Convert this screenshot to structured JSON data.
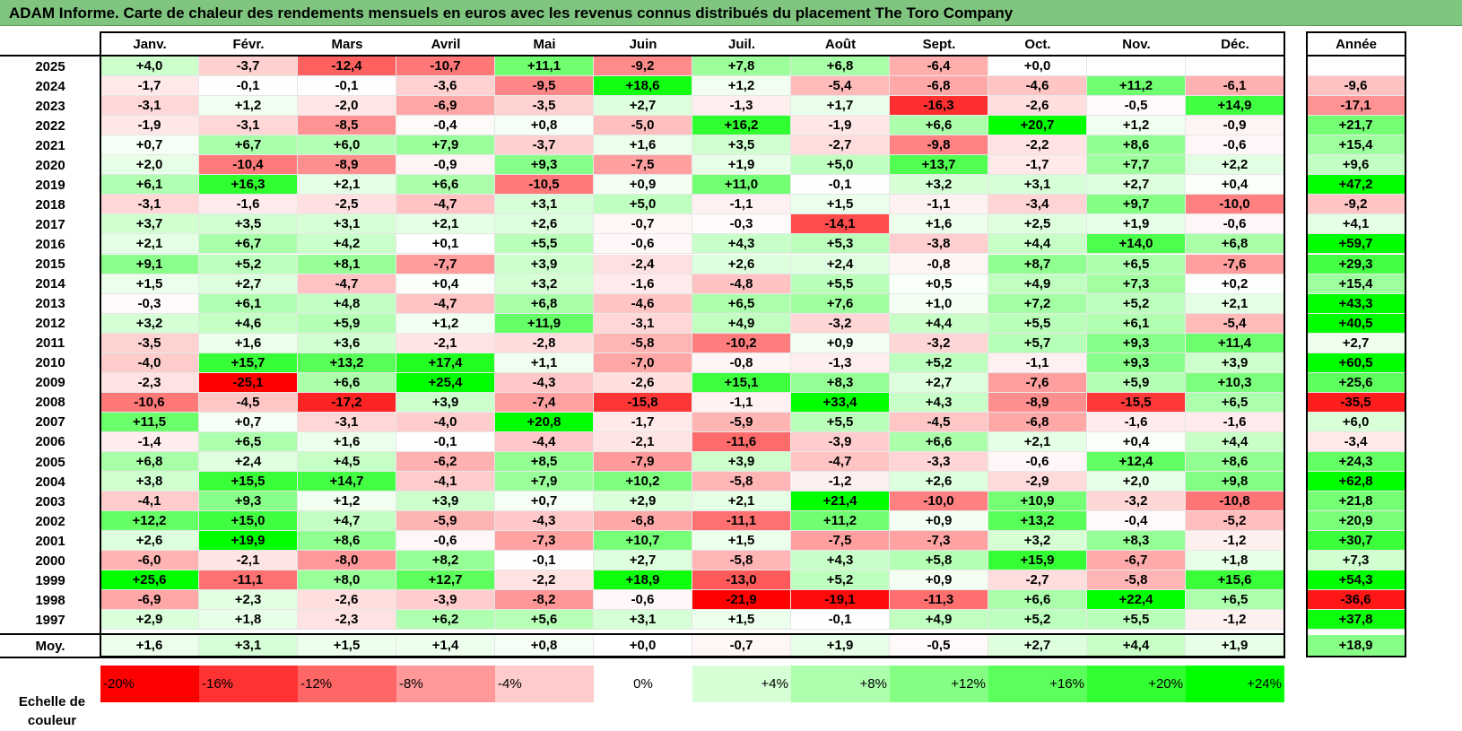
{
  "title": "ADAM Informe. Carte de chaleur des rendements mensuels en euros avec les revenus connus distribués du placement The Toro Company",
  "chart_data": {
    "type": "heatmap",
    "title": "ADAM Informe. Carte de chaleur des rendements mensuels en euros avec les revenus connus distribués du placement The Toro Company",
    "columns": [
      "Janv.",
      "Févr.",
      "Mars",
      "Avril",
      "Mai",
      "Juin",
      "Juil.",
      "Août",
      "Sept.",
      "Oct.",
      "Nov.",
      "Déc."
    ],
    "annual_header": "Année",
    "average_label": "Moy.",
    "rows": [
      {
        "year": "2025",
        "values": [
          "+4,0",
          "-3,7",
          "-12,4",
          "-10,7",
          "+11,1",
          "-9,2",
          "+7,8",
          "+6,8",
          "-6,4",
          "+0,0",
          "",
          ""
        ],
        "annual": ""
      },
      {
        "year": "2024",
        "values": [
          "-1,7",
          "-0,1",
          "-0,1",
          "-3,6",
          "-9,5",
          "+18,6",
          "+1,2",
          "-5,4",
          "-6,8",
          "-4,6",
          "+11,2",
          "-6,1"
        ],
        "annual": "-9,6"
      },
      {
        "year": "2023",
        "values": [
          "-3,1",
          "+1,2",
          "-2,0",
          "-6,9",
          "-3,5",
          "+2,7",
          "-1,3",
          "+1,7",
          "-16,3",
          "-2,6",
          "-0,5",
          "+14,9"
        ],
        "annual": "-17,1"
      },
      {
        "year": "2022",
        "values": [
          "-1,9",
          "-3,1",
          "-8,5",
          "-0,4",
          "+0,8",
          "-5,0",
          "+16,2",
          "-1,9",
          "+6,6",
          "+20,7",
          "+1,2",
          "-0,9"
        ],
        "annual": "+21,7"
      },
      {
        "year": "2021",
        "values": [
          "+0,7",
          "+6,7",
          "+6,0",
          "+7,9",
          "-3,7",
          "+1,6",
          "+3,5",
          "-2,7",
          "-9,8",
          "-2,2",
          "+8,6",
          "-0,6"
        ],
        "annual": "+15,4"
      },
      {
        "year": "2020",
        "values": [
          "+2,0",
          "-10,4",
          "-8,9",
          "-0,9",
          "+9,3",
          "-7,5",
          "+1,9",
          "+5,0",
          "+13,7",
          "-1,7",
          "+7,7",
          "+2,2"
        ],
        "annual": "+9,6"
      },
      {
        "year": "2019",
        "values": [
          "+6,1",
          "+16,3",
          "+2,1",
          "+6,6",
          "-10,5",
          "+0,9",
          "+11,0",
          "-0,1",
          "+3,2",
          "+3,1",
          "+2,7",
          "+0,4"
        ],
        "annual": "+47,2"
      },
      {
        "year": "2018",
        "values": [
          "-3,1",
          "-1,6",
          "-2,5",
          "-4,7",
          "+3,1",
          "+5,0",
          "-1,1",
          "+1,5",
          "-1,1",
          "-3,4",
          "+9,7",
          "-10,0"
        ],
        "annual": "-9,2"
      },
      {
        "year": "2017",
        "values": [
          "+3,7",
          "+3,5",
          "+3,1",
          "+2,1",
          "+2,6",
          "-0,7",
          "-0,3",
          "-14,1",
          "+1,6",
          "+2,5",
          "+1,9",
          "-0,6"
        ],
        "annual": "+4,1"
      },
      {
        "year": "2016",
        "values": [
          "+2,1",
          "+6,7",
          "+4,2",
          "+0,1",
          "+5,5",
          "-0,6",
          "+4,3",
          "+5,3",
          "-3,8",
          "+4,4",
          "+14,0",
          "+6,8"
        ],
        "annual": "+59,7"
      },
      {
        "year": "2015",
        "values": [
          "+9,1",
          "+5,2",
          "+8,1",
          "-7,7",
          "+3,9",
          "-2,4",
          "+2,6",
          "+2,4",
          "-0,8",
          "+8,7",
          "+6,5",
          "-7,6"
        ],
        "annual": "+29,3"
      },
      {
        "year": "2014",
        "values": [
          "+1,5",
          "+2,7",
          "-4,7",
          "+0,4",
          "+3,2",
          "-1,6",
          "-4,8",
          "+5,5",
          "+0,5",
          "+4,9",
          "+7,3",
          "+0,2"
        ],
        "annual": "+15,4"
      },
      {
        "year": "2013",
        "values": [
          "-0,3",
          "+6,1",
          "+4,8",
          "-4,7",
          "+6,8",
          "-4,6",
          "+6,5",
          "+7,6",
          "+1,0",
          "+7,2",
          "+5,2",
          "+2,1"
        ],
        "annual": "+43,3"
      },
      {
        "year": "2012",
        "values": [
          "+3,2",
          "+4,6",
          "+5,9",
          "+1,2",
          "+11,9",
          "-3,1",
          "+4,9",
          "-3,2",
          "+4,4",
          "+5,5",
          "+6,1",
          "-5,4"
        ],
        "annual": "+40,5"
      },
      {
        "year": "2011",
        "values": [
          "-3,5",
          "+1,6",
          "+3,6",
          "-2,1",
          "-2,8",
          "-5,8",
          "-10,2",
          "+0,9",
          "-3,2",
          "+5,7",
          "+9,3",
          "+11,4"
        ],
        "annual": "+2,7"
      },
      {
        "year": "2010",
        "values": [
          "-4,0",
          "+15,7",
          "+13,2",
          "+17,4",
          "+1,1",
          "-7,0",
          "-0,8",
          "-1,3",
          "+5,2",
          "-1,1",
          "+9,3",
          "+3,9"
        ],
        "annual": "+60,5"
      },
      {
        "year": "2009",
        "values": [
          "-2,3",
          "-25,1",
          "+6,6",
          "+25,4",
          "-4,3",
          "-2,6",
          "+15,1",
          "+8,3",
          "+2,7",
          "-7,6",
          "+5,9",
          "+10,3"
        ],
        "annual": "+25,6"
      },
      {
        "year": "2008",
        "values": [
          "-10,6",
          "-4,5",
          "-17,2",
          "+3,9",
          "-7,4",
          "-15,8",
          "-1,1",
          "+33,4",
          "+4,3",
          "-8,9",
          "-15,5",
          "+6,5"
        ],
        "annual": "-35,5"
      },
      {
        "year": "2007",
        "values": [
          "+11,5",
          "+0,7",
          "-3,1",
          "-4,0",
          "+20,8",
          "-1,7",
          "-5,9",
          "+5,5",
          "-4,5",
          "-6,8",
          "-1,6",
          "-1,6"
        ],
        "annual": "+6,0"
      },
      {
        "year": "2006",
        "values": [
          "-1,4",
          "+6,5",
          "+1,6",
          "-0,1",
          "-4,4",
          "-2,1",
          "-11,6",
          "-3,9",
          "+6,6",
          "+2,1",
          "+0,4",
          "+4,4"
        ],
        "annual": "-3,4"
      },
      {
        "year": "2005",
        "values": [
          "+6,8",
          "+2,4",
          "+4,5",
          "-6,2",
          "+8,5",
          "-7,9",
          "+3,9",
          "-4,7",
          "-3,3",
          "-0,6",
          "+12,4",
          "+8,6"
        ],
        "annual": "+24,3"
      },
      {
        "year": "2004",
        "values": [
          "+3,8",
          "+15,5",
          "+14,7",
          "-4,1",
          "+7,9",
          "+10,2",
          "-5,8",
          "-1,2",
          "+2,6",
          "-2,9",
          "+2,0",
          "+9,8"
        ],
        "annual": "+62,8"
      },
      {
        "year": "2003",
        "values": [
          "-4,1",
          "+9,3",
          "+1,2",
          "+3,9",
          "+0,7",
          "+2,9",
          "+2,1",
          "+21,4",
          "-10,0",
          "+10,9",
          "-3,2",
          "-10,8"
        ],
        "annual": "+21,8"
      },
      {
        "year": "2002",
        "values": [
          "+12,2",
          "+15,0",
          "+4,7",
          "-5,9",
          "-4,3",
          "-6,8",
          "-11,1",
          "+11,2",
          "+0,9",
          "+13,2",
          "-0,4",
          "-5,2"
        ],
        "annual": "+20,9"
      },
      {
        "year": "2001",
        "values": [
          "+2,6",
          "+19,9",
          "+8,6",
          "-0,6",
          "-7,3",
          "+10,7",
          "+1,5",
          "-7,5",
          "-7,3",
          "+3,2",
          "+8,3",
          "-1,2"
        ],
        "annual": "+30,7"
      },
      {
        "year": "2000",
        "values": [
          "-6,0",
          "-2,1",
          "-8,0",
          "+8,2",
          "-0,1",
          "+2,7",
          "-5,8",
          "+4,3",
          "+5,8",
          "+15,9",
          "-6,7",
          "+1,8"
        ],
        "annual": "+7,3"
      },
      {
        "year": "1999",
        "values": [
          "+25,6",
          "-11,1",
          "+8,0",
          "+12,7",
          "-2,2",
          "+18,9",
          "-13,0",
          "+5,2",
          "+0,9",
          "-2,7",
          "-5,8",
          "+15,6"
        ],
        "annual": "+54,3"
      },
      {
        "year": "1998",
        "values": [
          "-6,9",
          "+2,3",
          "-2,6",
          "-3,9",
          "-8,2",
          "-0,6",
          "-21,9",
          "-19,1",
          "-11,3",
          "+6,6",
          "+22,4",
          "+6,5"
        ],
        "annual": "-36,6"
      },
      {
        "year": "1997",
        "values": [
          "+2,9",
          "+1,8",
          "-2,3",
          "+6,2",
          "+5,6",
          "+3,1",
          "+1,5",
          "-0,1",
          "+4,9",
          "+5,2",
          "+5,5",
          "-1,2"
        ],
        "annual": "+37,8"
      }
    ],
    "average": {
      "values": [
        "+1,6",
        "+3,1",
        "+1,5",
        "+1,4",
        "+0,8",
        "+0,0",
        "-0,7",
        "+1,9",
        "-0,5",
        "+2,7",
        "+4,4",
        "+1,9"
      ],
      "annual": "+18,9"
    },
    "color_scale": {
      "label": "Echelle de couleur",
      "entries": [
        {
          "label": "-20%",
          "value": -20,
          "color": "#ff0000"
        },
        {
          "label": "-16%",
          "value": -16,
          "color": "#ff3333"
        },
        {
          "label": "-12%",
          "value": -12,
          "color": "#ff6666"
        },
        {
          "label": "-8%",
          "value": -8,
          "color": "#ff9999"
        },
        {
          "label": "-4%",
          "value": -4,
          "color": "#ffcccc"
        },
        {
          "label": "0%",
          "value": 0,
          "color": "#ffffff"
        },
        {
          "label": "+4%",
          "value": 4,
          "color": "#d6ffd6"
        },
        {
          "label": "+8%",
          "value": 8,
          "color": "#adffad"
        },
        {
          "label": "+12%",
          "value": 12,
          "color": "#84ff84"
        },
        {
          "label": "+16%",
          "value": 16,
          "color": "#5bff5b"
        },
        {
          "label": "+20%",
          "value": 20,
          "color": "#32ff32"
        },
        {
          "label": "+24%",
          "value": 24,
          "color": "#00ff00"
        }
      ]
    }
  },
  "colors": {
    "title_bar": "#7fc47f",
    "negative_max": "#ff0000",
    "positive_max": "#00ff00",
    "neutral": "#ffffff"
  }
}
